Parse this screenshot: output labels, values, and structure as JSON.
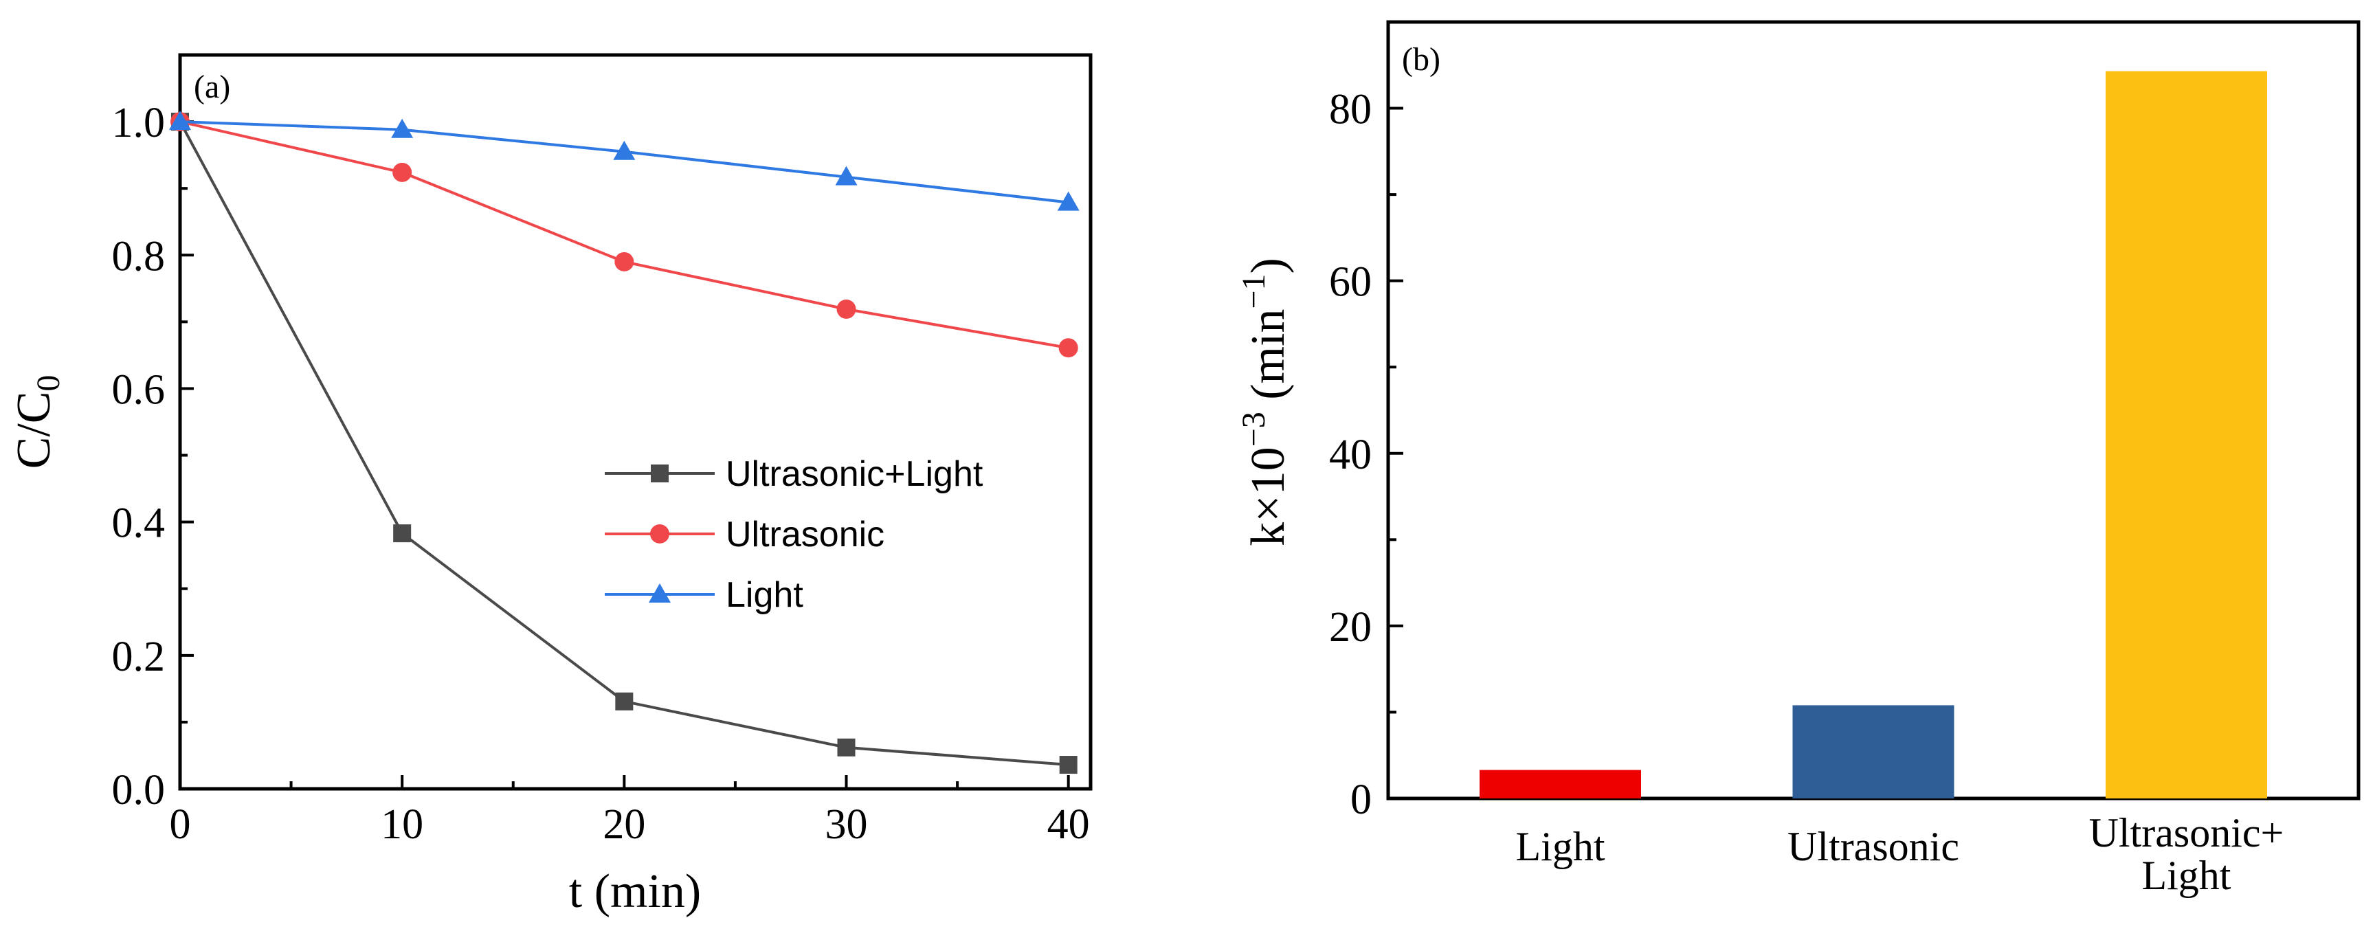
{
  "chart_data": [
    {
      "type": "line",
      "panel_label": "(a)",
      "xlabel": "t (min)",
      "ylabel": "C/C",
      "ylabel_sub": "0",
      "xlim": [
        0,
        41
      ],
      "ylim": [
        0,
        1.1
      ],
      "x": [
        0,
        10,
        20,
        30,
        40
      ],
      "xticks": [
        "0",
        "10",
        "20",
        "30",
        "40"
      ],
      "yticks": [
        "0.0",
        "0.2",
        "0.4",
        "0.6",
        "0.8",
        "1.0"
      ],
      "legend_position": "center-right",
      "series": [
        {
          "name": "Ultrasonic+Light",
          "marker": "square",
          "color": "#4a4a4a",
          "values": [
            1.0,
            0.383,
            0.131,
            0.062,
            0.036
          ]
        },
        {
          "name": "Ultrasonic",
          "marker": "circle",
          "color": "#f0474b",
          "values": [
            1.0,
            0.924,
            0.79,
            0.719,
            0.661
          ]
        },
        {
          "name": "Light",
          "marker": "triangle",
          "color": "#2f79e3",
          "values": [
            1.0,
            0.988,
            0.955,
            0.917,
            0.879
          ]
        }
      ]
    },
    {
      "type": "bar",
      "panel_label": "(b)",
      "ylabel": "k×10",
      "ylabel_sup": "−3",
      "ylabel_unit": " (min",
      "ylabel_unit_sup": "−1",
      "ylabel_close": ")",
      "ylim": [
        0,
        90
      ],
      "yticks": [
        "0",
        "20",
        "40",
        "60",
        "80"
      ],
      "categories": [
        "Light",
        "Ultrasonic",
        "Ultrasonic+ Light"
      ],
      "category_lines": [
        [
          "Light"
        ],
        [
          "Ultrasonic"
        ],
        [
          "Ultrasonic+",
          "Light"
        ]
      ],
      "values": [
        3.3,
        10.8,
        84.3
      ],
      "colors": [
        "#ee0000",
        "#2e5e95",
        "#fcc012"
      ]
    }
  ]
}
